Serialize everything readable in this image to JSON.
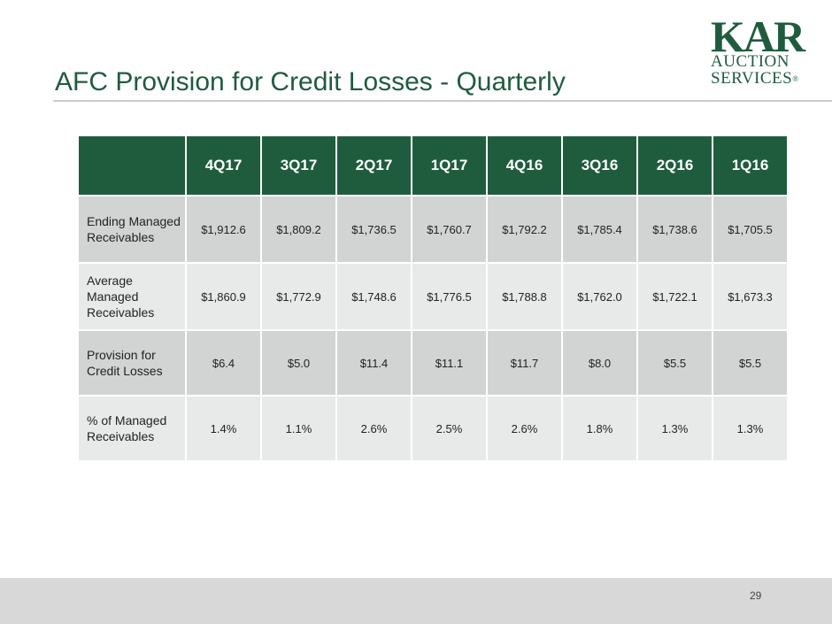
{
  "slide": {
    "title": "AFC Provision for Credit Losses - Quarterly",
    "page_number": "29"
  },
  "logo": {
    "mark": "KAR",
    "line1": "AUCTION",
    "line2": "SERVICES",
    "registered": "®"
  },
  "table": {
    "columns": [
      "4Q17",
      "3Q17",
      "2Q17",
      "1Q17",
      "4Q16",
      "3Q16",
      "2Q16",
      "1Q16"
    ],
    "rows": [
      {
        "label": "Ending Managed Receivables",
        "values": [
          "$1,912.6",
          "$1,809.2",
          "$1,736.5",
          "$1,760.7",
          "$1,792.2",
          "$1,785.4",
          "$1,738.6",
          "$1,705.5"
        ]
      },
      {
        "label": "Average Managed Receivables",
        "values": [
          "$1,860.9",
          "$1,772.9",
          "$1,748.6",
          "$1,776.5",
          "$1,788.8",
          "$1,762.0",
          "$1,722.1",
          "$1,673.3"
        ]
      },
      {
        "label": "Provision for Credit Losses",
        "values": [
          "$6.4",
          "$5.0",
          "$11.4",
          "$11.1",
          "$11.7",
          "$8.0",
          "$5.5",
          "$5.5"
        ]
      },
      {
        "label": "% of Managed Receivables",
        "values": [
          "1.4%",
          "1.1%",
          "2.6%",
          "2.5%",
          "2.6%",
          "1.8%",
          "1.3%",
          "1.3%"
        ]
      }
    ]
  },
  "colors": {
    "brand_green": "#1f5c3e",
    "row_dark": "#d1d4d2",
    "row_light": "#e7eae8",
    "footer_band": "#d8d8d8"
  }
}
